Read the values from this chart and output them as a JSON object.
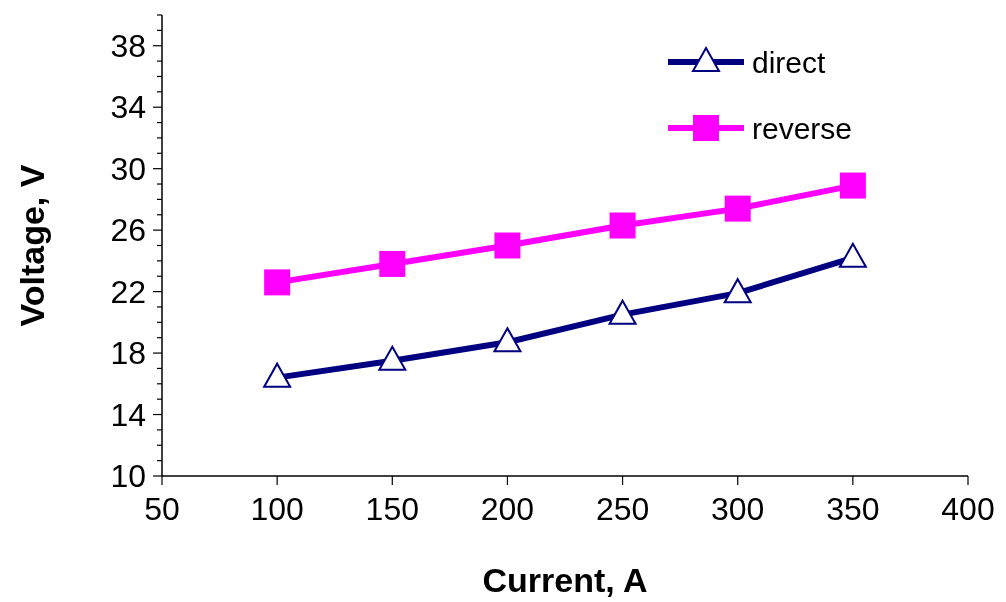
{
  "chart_data": {
    "type": "line",
    "xlabel": "Current, A",
    "ylabel": "Voltage, V",
    "x": [
      100,
      150,
      200,
      250,
      300,
      350
    ],
    "series": [
      {
        "name": "direct",
        "color": "#000080",
        "marker": "triangle",
        "values": [
          16.4,
          17.5,
          18.7,
          20.5,
          21.9,
          24.2
        ]
      },
      {
        "name": "reverse",
        "color": "#ff00ff",
        "marker": "square",
        "values": [
          22.6,
          23.8,
          25.0,
          26.3,
          27.4,
          28.9
        ]
      }
    ],
    "xlim": [
      50,
      400
    ],
    "xticks": [
      50,
      100,
      150,
      200,
      250,
      300,
      350,
      400
    ],
    "ylim": [
      10,
      40
    ],
    "yticks": [
      10,
      {
        "value": 11,
        "label": null
      },
      {
        "value": 12,
        "label": null
      },
      {
        "value": 13,
        "label": null
      },
      14,
      {
        "value": 15,
        "label": null
      },
      {
        "value": 16,
        "label": null
      },
      {
        "value": 17,
        "label": null
      },
      18,
      {
        "value": 19,
        "label": null
      },
      {
        "value": 20,
        "label": null
      },
      {
        "value": 21,
        "label": null
      },
      22,
      {
        "value": 23,
        "label": null
      },
      {
        "value": 24,
        "label": null
      },
      {
        "value": 25,
        "label": null
      },
      26,
      {
        "value": 27,
        "label": null
      },
      {
        "value": 28,
        "label": null
      },
      {
        "value": 29,
        "label": null
      },
      30,
      {
        "value": 31,
        "label": null
      },
      {
        "value": 32,
        "label": null
      },
      {
        "value": 33,
        "label": null
      },
      34,
      {
        "value": 35,
        "label": null
      },
      {
        "value": 36,
        "label": null
      },
      {
        "value": 37,
        "label": null
      },
      38,
      {
        "value": 39,
        "label": null
      },
      {
        "value": 40,
        "label": null
      }
    ],
    "grid": false,
    "legend": "top right",
    "line_style": "solid"
  }
}
